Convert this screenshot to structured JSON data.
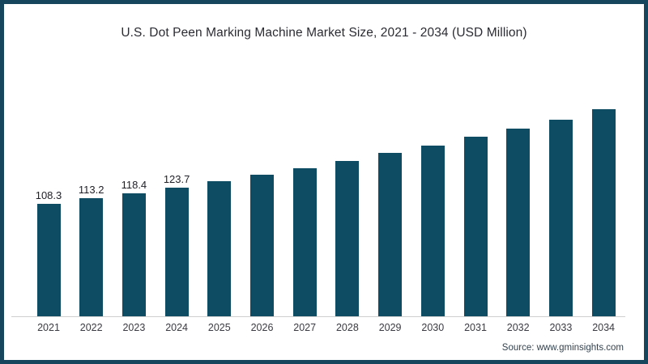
{
  "page": {
    "background": "#ffffff",
    "border_color": "#16455e"
  },
  "chart_data": {
    "type": "bar",
    "title": "U.S. Dot Peen Marking Machine Market Size, 2021 - 2034 (USD Million)",
    "unit": "USD Million",
    "categories": [
      "2021",
      "2022",
      "2023",
      "2024",
      "2025",
      "2026",
      "2027",
      "2028",
      "2029",
      "2030",
      "2031",
      "2032",
      "2033",
      "2034"
    ],
    "values": [
      108.3,
      113.2,
      118.4,
      123.7,
      129.4,
      135.7,
      141.9,
      149.2,
      156.5,
      163.9,
      172.4,
      180.3,
      188.9,
      199.1
    ],
    "value_labels": [
      "108.3",
      "113.2",
      "118.4",
      "123.7",
      "",
      "",
      "",
      "",
      "",
      "",
      "",
      "",
      "",
      ""
    ],
    "bar_color": "#0e4c63",
    "axis_line_color": "#cfcfcf",
    "ylim": [
      0,
      210
    ],
    "grid": false,
    "legend": "none",
    "xlabel": "",
    "ylabel": ""
  },
  "footer": {
    "source_label": "Source: www.gminsights.com"
  }
}
